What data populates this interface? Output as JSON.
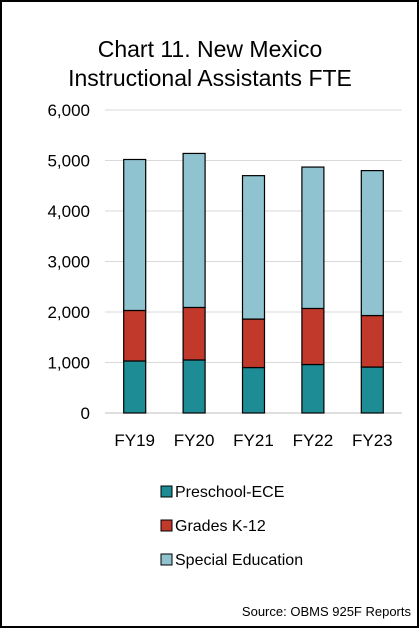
{
  "chart_data": {
    "type": "bar",
    "stacked": true,
    "title": "Chart 11. New Mexico Instructional Assistants FTE",
    "title_lines": [
      "Chart 11. New Mexico",
      "Instructional Assistants FTE"
    ],
    "categories": [
      "FY19",
      "FY20",
      "FY21",
      "FY22",
      "FY23"
    ],
    "series": [
      {
        "name": "Preschool-ECE",
        "color": "#1e8c95",
        "values": [
          1030,
          1050,
          900,
          960,
          910
        ]
      },
      {
        "name": "Grades K-12",
        "color": "#c0392b",
        "values": [
          1000,
          1040,
          960,
          1110,
          1020
        ]
      },
      {
        "name": "Special Education",
        "color": "#8fc3d0",
        "values": [
          2990,
          3050,
          2840,
          2800,
          2870
        ]
      }
    ],
    "ylim": [
      0,
      6000
    ],
    "yticks": [
      0,
      1000,
      2000,
      3000,
      4000,
      5000,
      6000
    ],
    "ytick_labels": [
      "0",
      "1,000",
      "2,000",
      "3,000",
      "4,000",
      "5,000",
      "6,000"
    ],
    "grid": true,
    "legend_position": "bottom",
    "xlabel": "",
    "ylabel": ""
  },
  "source_note": "Source: OBMS 925F Reports"
}
